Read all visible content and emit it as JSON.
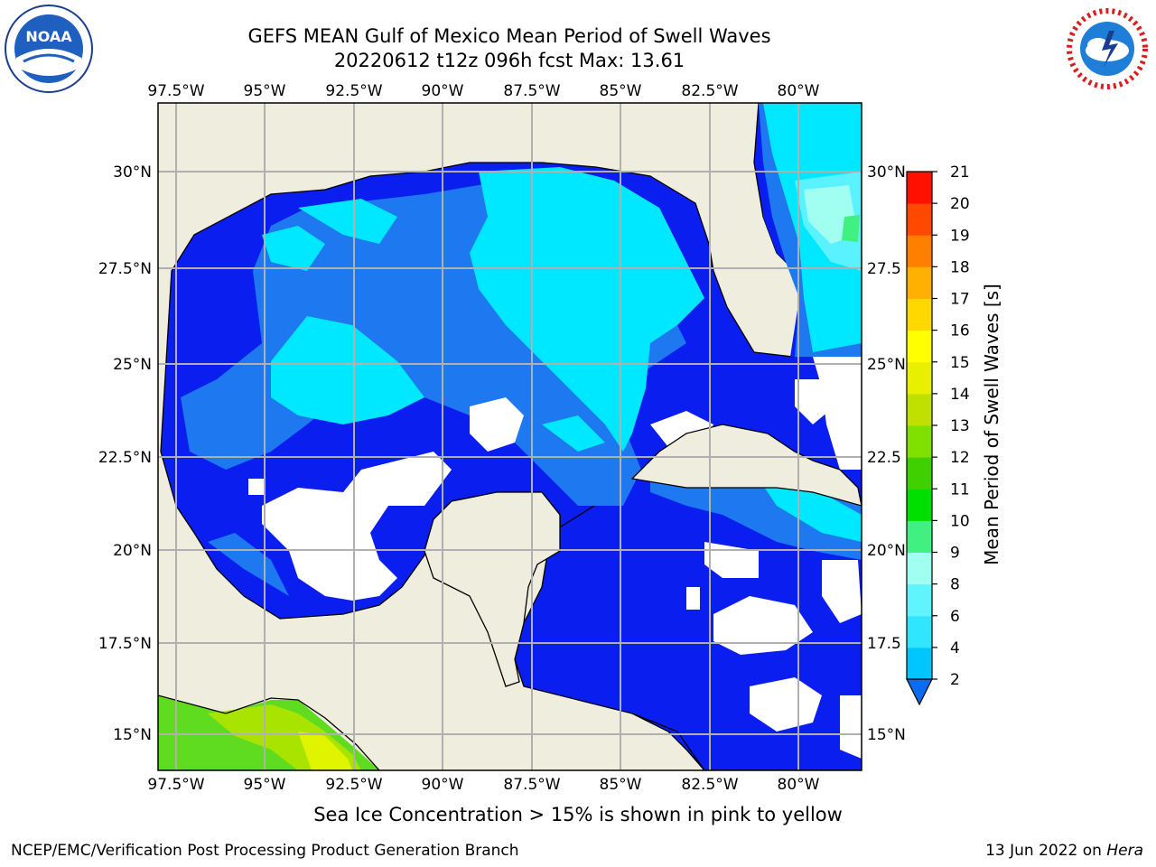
{
  "header": {
    "title_line1": "GEFS MEAN Gulf of Mexico Mean Period of Swell Waves",
    "title_line2": "20220612 t12z 096h fcst   Max: 13.61"
  },
  "logos": {
    "left": "NOAA",
    "right": "NATIONAL WEATHER SERVICE"
  },
  "map": {
    "lon_ticks": [
      "97.5°W",
      "95°W",
      "92.5°W",
      "90°W",
      "87.5°W",
      "85°W",
      "82.5°W",
      "80°W"
    ],
    "lat_ticks_left": [
      "30°N",
      "27.5°N",
      "25°N",
      "22.5°N",
      "20°N",
      "17.5°N",
      "15°N"
    ],
    "lat_ticks_right": [
      "30°N",
      "27.5",
      "25°N",
      "22.5",
      "20°N",
      "17.5",
      "15°N"
    ],
    "land_color": "#efedde",
    "grid_color": "#b0b0b0"
  },
  "colorbar": {
    "title": "Mean Period of Swell Waves [s]",
    "ticks": [
      "2",
      "4",
      "6",
      "8",
      "9",
      "10",
      "11",
      "12",
      "13",
      "14",
      "15",
      "16",
      "17",
      "18",
      "19",
      "20",
      "21"
    ],
    "colors": [
      "#0a6cf0",
      "#00c6ff",
      "#30e6ff",
      "#60f4ff",
      "#a0fff0",
      "#40f080",
      "#00e000",
      "#40d000",
      "#80e000",
      "#c0e000",
      "#e8f000",
      "#ffff00",
      "#ffd800",
      "#ffb000",
      "#ff8000",
      "#ff4800",
      "#ff1000"
    ]
  },
  "caption": "Sea Ice Concentration > 15% is shown in pink to yellow",
  "footer": {
    "left": "NCEP/EMC/Verification Post Processing Product Generation Branch",
    "right_date": "13 Jun 2022 on",
    "right_host": "Hera"
  }
}
